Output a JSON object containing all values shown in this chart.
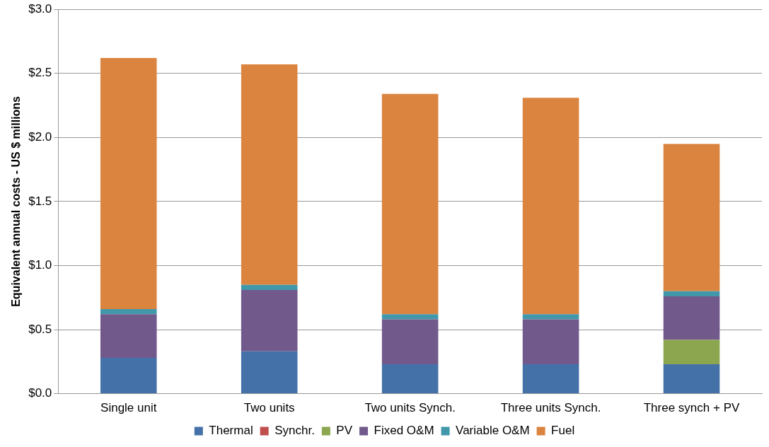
{
  "chart_data": {
    "type": "bar",
    "stacked": true,
    "ylabel": "Equivalent annual costs - US $ millions",
    "categories": [
      "Single unit",
      "Two units",
      "Two units Synch.",
      "Three units Synch.",
      "Three synch + PV"
    ],
    "series": [
      {
        "name": "Thermal",
        "color": "#4472a8",
        "values": [
          0.28,
          0.33,
          0.23,
          0.23,
          0.23
        ]
      },
      {
        "name": "Synchr.",
        "color": "#c0504d",
        "values": [
          0,
          0,
          0,
          0,
          0
        ]
      },
      {
        "name": "PV",
        "color": "#8ba64f",
        "values": [
          0,
          0,
          0,
          0,
          0.19
        ]
      },
      {
        "name": "Fixed O&M",
        "color": "#71598c",
        "values": [
          0.34,
          0.48,
          0.35,
          0.35,
          0.34
        ]
      },
      {
        "name": "Variable O&M",
        "color": "#4298ab",
        "values": [
          0.04,
          0.04,
          0.04,
          0.04,
          0.04
        ]
      },
      {
        "name": "Fuel",
        "color": "#db843f",
        "values": [
          1.96,
          1.72,
          1.72,
          1.69,
          1.15
        ]
      }
    ],
    "ylim": [
      0,
      3
    ],
    "yticks": [
      {
        "value": 0,
        "label": "$0.0"
      },
      {
        "value": 0.5,
        "label": "$0.5"
      },
      {
        "value": 1,
        "label": "$1.0"
      },
      {
        "value": 1.5,
        "label": "$1.5"
      },
      {
        "value": 2,
        "label": "$2.0"
      },
      {
        "value": 2.5,
        "label": "$2.5"
      },
      {
        "value": 3,
        "label": "$3.0"
      }
    ],
    "grid": "y",
    "legend": "bottom"
  }
}
